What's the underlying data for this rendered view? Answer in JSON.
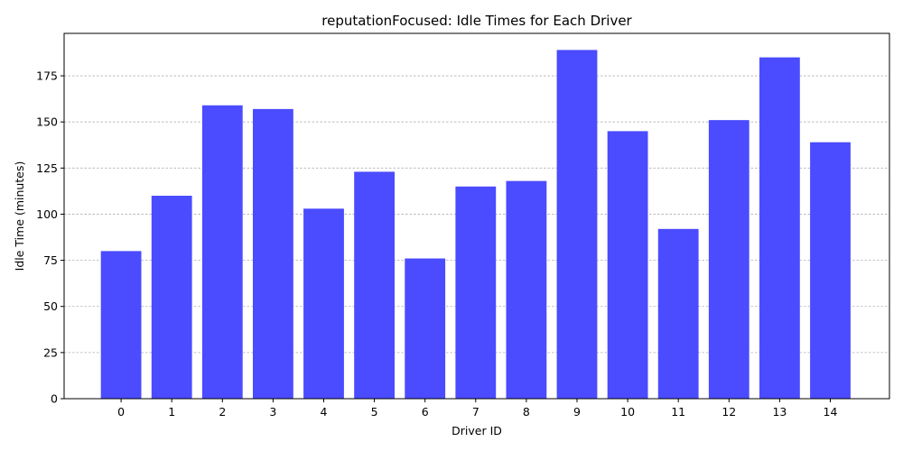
{
  "chart_data": {
    "type": "bar",
    "title": "reputationFocused: Idle Times for Each Driver",
    "xlabel": "Driver ID",
    "ylabel": "Idle Time (minutes)",
    "categories": [
      "0",
      "1",
      "2",
      "3",
      "4",
      "5",
      "6",
      "7",
      "8",
      "9",
      "10",
      "11",
      "12",
      "13",
      "14"
    ],
    "values": [
      80,
      110,
      159,
      157,
      103,
      123,
      76,
      115,
      118,
      189,
      145,
      92,
      151,
      185,
      139
    ],
    "ylim": [
      0,
      198
    ],
    "yticks": [
      0,
      25,
      50,
      75,
      100,
      125,
      150,
      175
    ],
    "grid": "y-dashed",
    "bar_color": "#4b4bff",
    "grid_color": "#b0b0b0"
  }
}
